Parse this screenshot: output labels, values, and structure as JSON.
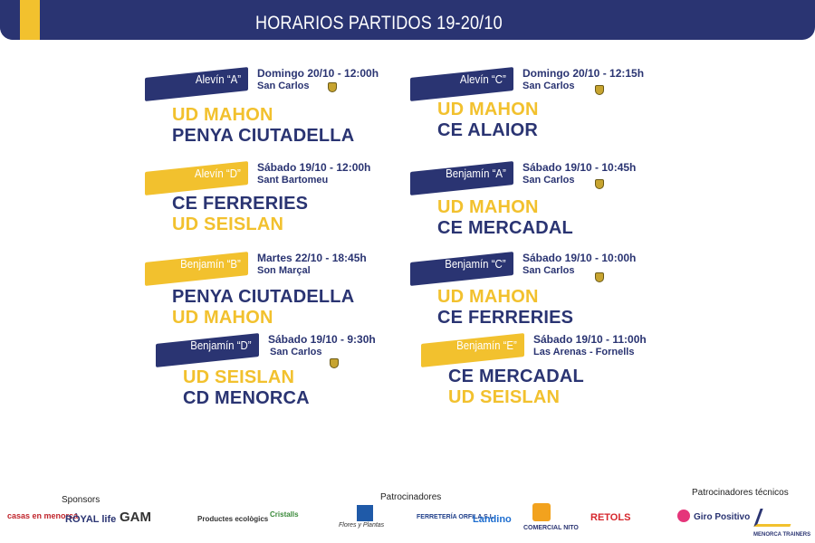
{
  "header": {
    "title": "HORARIOS PARTIDOS 19-20/10"
  },
  "matches": [
    {
      "category": "Alevín “A”",
      "datetime": "Domingo 20/10 - 12:00h",
      "venue": "San Carlos",
      "team1": "UD MAHON",
      "team2": "PENYA CIUTADELLA"
    },
    {
      "category": "Alevín “C”",
      "datetime": "Domingo 20/10 - 12:15h",
      "venue": "San Carlos",
      "team1": "UD MAHON",
      "team2": "CE ALAIOR"
    },
    {
      "category": "Alevín “D”",
      "datetime": "Sábado 19/10 - 12:00h",
      "venue": "Sant Bartomeu",
      "team1": "CE FERRERIES",
      "team2": "UD SEISLAN"
    },
    {
      "category": "Benjamín “A”",
      "datetime": "Sábado 19/10 - 10:45h",
      "venue": "San Carlos",
      "team1": "UD MAHON",
      "team2": "CE MERCADAL"
    },
    {
      "category": "Benjamín “B”",
      "datetime": "Martes 22/10 - 18:45h",
      "venue": "Son Marçal",
      "team1": "PENYA CIUTADELLA",
      "team2": "UD MAHON"
    },
    {
      "category": "Benjamín “C”",
      "datetime": "Sábado 19/10 - 10:00h",
      "venue": "San Carlos",
      "team1": "UD MAHON",
      "team2": "CE FERRERIES"
    },
    {
      "category": "Benjamín “D”",
      "datetime": "Sábado 19/10 - 9:30h",
      "venue": "San Carlos",
      "team1": "UD SEISLAN",
      "team2": "CD MENORCA"
    },
    {
      "category": "Benjamín “E”",
      "datetime": "Sábado 19/10 - 11:00h",
      "venue": "Las Arenas - Fornells",
      "team1": "CE MERCADAL",
      "team2": "UD SEISLAN"
    }
  ],
  "sponsors": {
    "heading": "Sponsors",
    "logos": [
      "casas en menorca",
      "RÒYAL life",
      "GAM"
    ]
  },
  "patrocinadores": {
    "heading": "Patrocinadores",
    "logos": [
      "Productes ecològics",
      "Cristalls",
      "Flores y Plantas",
      "FERRETERÍA ORFILA S.L.",
      "Landino",
      "COMERCIAL NITO",
      "RETOLS"
    ]
  },
  "tecnicos": {
    "heading": "Patrocinadores técnicos",
    "logos": [
      "Giro Positivo",
      "MENORCA TRAINERS"
    ]
  },
  "colors": {
    "navy": "#2a3472",
    "yellow": "#f2c12e"
  }
}
